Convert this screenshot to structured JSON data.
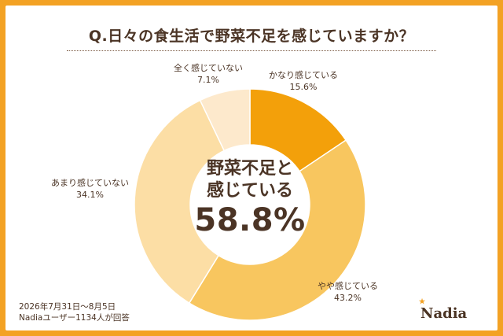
{
  "title": "Q.日々の食生活で野菜不足を感じていますか？",
  "center": {
    "line1": "野菜不足と",
    "line2": "感じている",
    "value": "58.8%"
  },
  "chart_data": {
    "type": "pie",
    "donut": true,
    "categories": [
      "かなり感じている",
      "やや感じている",
      "あまり感じていない",
      "全く感じていない"
    ],
    "values": [
      15.6,
      43.2,
      34.1,
      7.1
    ],
    "value_labels": [
      "15.6%",
      "43.2%",
      "34.1%",
      "7.1%"
    ],
    "colors": [
      "#f3a00a",
      "#f8c65f",
      "#fcdea5",
      "#fde9cc"
    ]
  },
  "footer": {
    "period": "2026年7月31日〜8月5日",
    "respondents": "Nadiaユーザー1134人が回答"
  },
  "logo": {
    "text": "Nadia",
    "brand_color": "#f3a224"
  }
}
